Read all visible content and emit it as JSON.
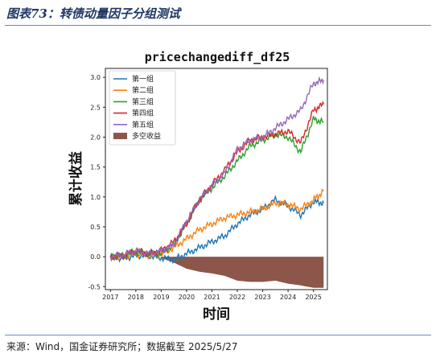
{
  "figure_caption": "图表73：转债动量因子分组测试",
  "source": "来源：Wind，国金证券研究所；数据截至 2025/5/27",
  "colors": {
    "accent": "#1f3864",
    "rule": "#6b8cc0"
  },
  "chart_data": {
    "type": "line",
    "title": "pricechangediff_df25",
    "xlabel": "时间",
    "ylabel": "累计收益",
    "xlim": [
      2016.8,
      2025.55
    ],
    "ylim": [
      -0.55,
      3.15
    ],
    "x_ticks": [
      "2017",
      "2018",
      "2019",
      "2020",
      "2021",
      "2022",
      "2023",
      "2024",
      "2025"
    ],
    "y_ticks": [
      "-0.5",
      "0.0",
      "0.5",
      "1.0",
      "1.5",
      "2.0",
      "2.5",
      "3.0"
    ],
    "legend_position": "top-left",
    "x": [
      2017.0,
      2017.5,
      2018.0,
      2018.5,
      2019.0,
      2019.5,
      2020.0,
      2020.5,
      2021.0,
      2021.5,
      2022.0,
      2022.5,
      2023.0,
      2023.5,
      2024.0,
      2024.5,
      2025.0,
      2025.4
    ],
    "series": [
      {
        "name": "第一组",
        "color": "#1f77b4",
        "values": [
          0.0,
          -0.03,
          0.02,
          0.02,
          -0.02,
          -0.05,
          0.05,
          0.15,
          0.25,
          0.35,
          0.55,
          0.7,
          0.8,
          0.95,
          0.85,
          0.7,
          0.92,
          0.9
        ]
      },
      {
        "name": "第二组",
        "color": "#ff7f0e",
        "values": [
          0.0,
          0.0,
          0.05,
          0.03,
          0.05,
          0.15,
          0.3,
          0.45,
          0.55,
          0.65,
          0.7,
          0.75,
          0.8,
          0.9,
          0.88,
          0.8,
          0.95,
          1.1
        ]
      },
      {
        "name": "第三组",
        "color": "#2ca02c",
        "values": [
          0.0,
          0.02,
          0.08,
          0.05,
          0.05,
          0.2,
          0.55,
          0.95,
          1.15,
          1.35,
          1.6,
          1.85,
          1.95,
          2.05,
          2.0,
          1.75,
          2.3,
          2.25
        ]
      },
      {
        "name": "第四组",
        "color": "#d62728",
        "values": [
          0.0,
          0.02,
          0.1,
          0.05,
          0.1,
          0.25,
          0.55,
          0.95,
          1.2,
          1.45,
          1.75,
          1.95,
          2.0,
          2.05,
          2.1,
          1.9,
          2.45,
          2.55
        ]
      },
      {
        "name": "第五组",
        "color": "#9467bd",
        "values": [
          0.0,
          0.03,
          0.1,
          0.05,
          0.1,
          0.2,
          0.6,
          0.95,
          1.2,
          1.4,
          1.8,
          1.95,
          2.0,
          2.15,
          2.3,
          2.45,
          2.9,
          2.95
        ]
      }
    ],
    "area_series": {
      "name": "多空收益",
      "color": "#8c564b",
      "x": [
        2019.0,
        2019.5,
        2020.0,
        2020.5,
        2021.0,
        2021.5,
        2022.0,
        2022.5,
        2023.0,
        2023.5,
        2024.0,
        2024.5,
        2025.0,
        2025.4
      ],
      "values": [
        -0.02,
        -0.1,
        -0.2,
        -0.25,
        -0.28,
        -0.32,
        -0.4,
        -0.42,
        -0.42,
        -0.4,
        -0.45,
        -0.48,
        -0.52,
        -0.52
      ]
    }
  }
}
